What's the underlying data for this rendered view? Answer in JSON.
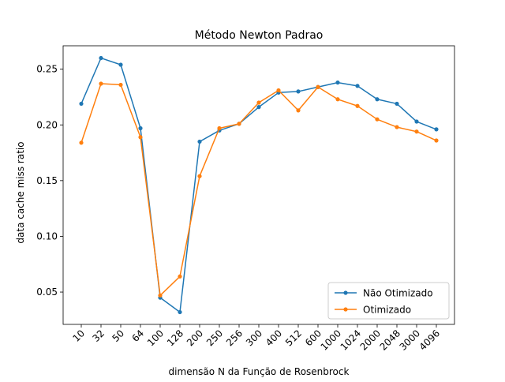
{
  "chart_data": {
    "type": "line",
    "title": "Método Newton Padrao",
    "xlabel": "dimensão N da Função de Rosenbrock",
    "ylabel": "data cache miss ratio",
    "categories": [
      "10",
      "32",
      "50",
      "64",
      "100",
      "128",
      "200",
      "250",
      "256",
      "300",
      "400",
      "512",
      "600",
      "1000",
      "1024",
      "2000",
      "2048",
      "3000",
      "4096"
    ],
    "yticks": [
      0.05,
      0.1,
      0.15,
      0.2,
      0.25
    ],
    "ytick_labels": [
      "0.05",
      "0.10",
      "0.15",
      "0.20",
      "0.25"
    ],
    "ylim": [
      0.021,
      0.271
    ],
    "grid": false,
    "legend_position": "lower right",
    "series": [
      {
        "name": "Não Otimizado",
        "color": "#1f77b4",
        "marker": "circle",
        "values": [
          0.219,
          0.26,
          0.254,
          0.197,
          0.045,
          0.032,
          0.185,
          0.195,
          0.201,
          0.216,
          0.229,
          0.23,
          0.234,
          0.238,
          0.235,
          0.223,
          0.219,
          0.203,
          0.196
        ]
      },
      {
        "name": "Otimizado",
        "color": "#ff7f0e",
        "marker": "circle",
        "values": [
          0.184,
          0.237,
          0.236,
          0.189,
          0.047,
          0.064,
          0.154,
          0.197,
          0.201,
          0.22,
          0.231,
          0.213,
          0.234,
          0.223,
          0.217,
          0.205,
          0.198,
          0.194,
          0.186
        ]
      }
    ]
  }
}
